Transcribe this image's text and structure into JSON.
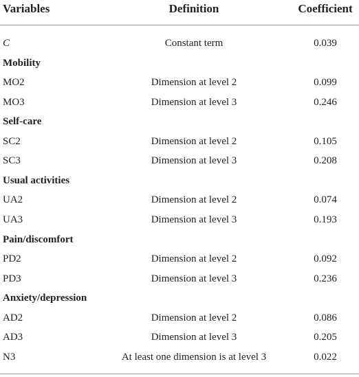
{
  "table": {
    "headers": [
      "Variables",
      "Definition",
      "Coefficient"
    ],
    "rows": [
      [
        "C",
        "Constant term",
        0.039
      ],
      [
        "Mobility"
      ],
      [
        "MO2",
        "Dimension at level 2",
        0.099
      ],
      [
        "MO3",
        "Dimension at level 3",
        0.246
      ],
      [
        "Self-care"
      ],
      [
        "SC2",
        "Dimension at level 2",
        0.105
      ],
      [
        "SC3",
        "Dimension at level 3",
        0.208
      ],
      [
        "Usual activities"
      ],
      [
        "UA2",
        "Dimension at level 2",
        0.074
      ],
      [
        "UA3",
        "Dimension at level 3",
        0.193
      ],
      [
        "Pain/discomfort"
      ],
      [
        "PD2",
        "Dimension at level 2",
        0.092
      ],
      [
        "PD3",
        "Dimension at level 3",
        0.236
      ],
      [
        "Anxiety/depression"
      ],
      [
        "AD2",
        "Dimension at level 2",
        0.086
      ],
      [
        "AD3",
        "Dimension at level 3",
        0.205
      ],
      [
        "N3",
        "At least one dimension is at level 3",
        0.022
      ]
    ]
  }
}
